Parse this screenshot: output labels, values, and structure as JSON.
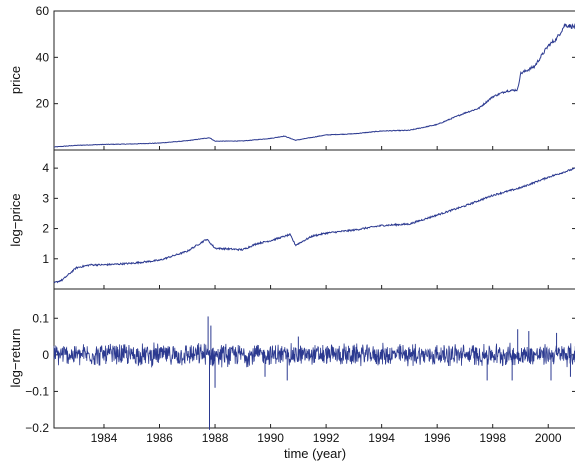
{
  "chart_data": [
    {
      "type": "line",
      "ylabel": "price",
      "xlim": [
        1982.2,
        2001.0
      ],
      "ylim": [
        0,
        60
      ],
      "yticks": [
        20,
        40,
        60
      ],
      "grid": false,
      "color": "#2b3990",
      "series": [
        {
          "x": [
            1982.2,
            1983.0,
            1984.0,
            1985.0,
            1986.0,
            1987.0,
            1987.8,
            1988.0,
            1989.0,
            1990.0,
            1990.5,
            1990.9,
            1992.0,
            1993.0,
            1994.0,
            1995.0,
            1996.0,
            1996.5,
            1997.0,
            1997.5,
            1998.0,
            1998.5,
            1998.9,
            1999.0,
            1999.5,
            2000.0,
            2000.3,
            2000.6,
            2001.0
          ],
          "y": [
            1.3,
            2.0,
            2.4,
            2.6,
            3.0,
            4.0,
            5.3,
            3.8,
            3.9,
            5.0,
            6.0,
            4.2,
            6.5,
            7.0,
            8.2,
            8.5,
            11.0,
            13.5,
            16.0,
            18.0,
            23.0,
            25.5,
            26.0,
            33.0,
            36.0,
            45.0,
            48.0,
            54.0,
            53.0
          ]
        }
      ]
    },
    {
      "type": "line",
      "ylabel": "log−price",
      "xlim": [
        1982.2,
        2001.0
      ],
      "ylim": [
        0,
        4.6
      ],
      "yticks": [
        1,
        2,
        3,
        4
      ],
      "grid": false,
      "color": "#2b3990",
      "series": [
        {
          "x": [
            1982.2,
            1982.5,
            1983.0,
            1983.5,
            1984.0,
            1985.0,
            1986.0,
            1986.5,
            1987.0,
            1987.7,
            1988.0,
            1989.0,
            1989.5,
            1990.0,
            1990.7,
            1990.9,
            1991.5,
            1992.0,
            1993.0,
            1994.0,
            1995.0,
            1996.0,
            1997.0,
            1998.0,
            1999.0,
            2000.0,
            2000.5,
            2001.0
          ],
          "y": [
            0.2,
            0.3,
            0.7,
            0.8,
            0.8,
            0.85,
            0.95,
            1.1,
            1.25,
            1.65,
            1.35,
            1.3,
            1.5,
            1.6,
            1.8,
            1.45,
            1.75,
            1.85,
            1.95,
            2.1,
            2.15,
            2.45,
            2.75,
            3.1,
            3.35,
            3.7,
            3.85,
            4.0
          ]
        }
      ]
    },
    {
      "type": "line",
      "ylabel": "log−return",
      "xlabel": "time (year)",
      "xlim": [
        1982.2,
        2001.0
      ],
      "ylim": [
        -0.2,
        0.18
      ],
      "yticks": [
        -0.2,
        -0.1,
        0,
        0.1
      ],
      "ytick_labels": [
        "−0.2",
        "−0.1",
        "0",
        "0.1"
      ],
      "xticks": [
        1984,
        1986,
        1988,
        1990,
        1992,
        1994,
        1996,
        1998,
        2000
      ],
      "grid": false,
      "color": "#2b3990",
      "noise_amplitude": 0.025,
      "spikes": [
        {
          "x": 1987.8,
          "y": -0.205
        },
        {
          "x": 1987.75,
          "y": 0.105
        },
        {
          "x": 1987.85,
          "y": 0.08
        },
        {
          "x": 1988.0,
          "y": -0.09
        },
        {
          "x": 1989.8,
          "y": -0.06
        },
        {
          "x": 1990.6,
          "y": -0.07
        },
        {
          "x": 1991.0,
          "y": 0.05
        },
        {
          "x": 1997.8,
          "y": -0.07
        },
        {
          "x": 1998.7,
          "y": -0.07
        },
        {
          "x": 1998.9,
          "y": 0.07
        },
        {
          "x": 1999.3,
          "y": 0.065
        },
        {
          "x": 2000.1,
          "y": -0.07
        },
        {
          "x": 2000.3,
          "y": 0.06
        },
        {
          "x": 2000.8,
          "y": -0.06
        }
      ]
    }
  ]
}
